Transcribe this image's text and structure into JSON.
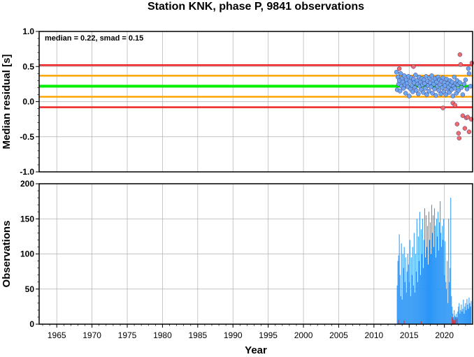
{
  "title": "Station KNK, phase P, 9841 observations",
  "colors": {
    "median_line": "#00ee00",
    "smad_line": "#ffa500",
    "two_smad_line": "#ee2222",
    "normal_point": "#6ea6f0",
    "outlier_point": "#f26b6b",
    "bar_normal": "#2a95f5",
    "bar_outlier": "#e02424",
    "grid": "#b0b0b0"
  },
  "chart_data": [
    {
      "type": "scatter",
      "ylabel": "Median residual [s]",
      "ylim": [
        -1.0,
        1.0
      ],
      "xlim": [
        1962.5,
        2024.0
      ],
      "yticks": [
        "-1.0",
        "-0.5",
        "0.0",
        "0.5",
        "1.0"
      ],
      "grid": true,
      "annotation": "median = 0.22, smad = 0.15",
      "median": 0.22,
      "smad": 0.15,
      "reference_lines": [
        {
          "value": 0.52,
          "color": "#ee2222"
        },
        {
          "value": 0.37,
          "color": "#ffa500"
        },
        {
          "value": 0.22,
          "color": "#00ee00"
        },
        {
          "value": 0.07,
          "color": "#ffa500"
        },
        {
          "value": -0.08,
          "color": "#ee2222"
        }
      ],
      "series": [
        {
          "category": "within",
          "points": [
            [
              2013.2,
              0.42
            ],
            [
              2013.3,
              0.17
            ],
            [
              2013.4,
              0.35
            ],
            [
              2013.5,
              0.25
            ],
            [
              2013.6,
              0.3
            ],
            [
              2013.7,
              0.15
            ],
            [
              2013.8,
              0.4
            ],
            [
              2013.9,
              0.22
            ],
            [
              2014.0,
              0.33
            ],
            [
              2014.1,
              0.28
            ],
            [
              2014.2,
              0.19
            ],
            [
              2014.3,
              0.37
            ],
            [
              2014.4,
              0.24
            ],
            [
              2014.5,
              0.12
            ],
            [
              2014.6,
              0.31
            ],
            [
              2014.7,
              0.26
            ],
            [
              2014.8,
              0.21
            ],
            [
              2014.9,
              0.36
            ],
            [
              2015.0,
              0.08
            ],
            [
              2015.1,
              0.29
            ],
            [
              2015.2,
              0.18
            ],
            [
              2015.3,
              0.34
            ],
            [
              2015.4,
              0.23
            ],
            [
              2015.5,
              0.14
            ],
            [
              2015.6,
              0.32
            ],
            [
              2015.7,
              0.27
            ],
            [
              2015.8,
              0.2
            ],
            [
              2015.9,
              0.38
            ],
            [
              2016.0,
              0.16
            ],
            [
              2016.1,
              0.3
            ],
            [
              2016.2,
              0.25
            ],
            [
              2016.3,
              0.11
            ],
            [
              2016.4,
              0.35
            ],
            [
              2016.5,
              0.22
            ],
            [
              2016.6,
              0.28
            ],
            [
              2016.7,
              0.17
            ],
            [
              2016.8,
              0.33
            ],
            [
              2016.9,
              0.24
            ],
            [
              2017.0,
              0.13
            ],
            [
              2017.1,
              0.31
            ],
            [
              2017.2,
              0.26
            ],
            [
              2017.3,
              0.19
            ],
            [
              2017.4,
              0.36
            ],
            [
              2017.5,
              0.1
            ],
            [
              2017.6,
              0.29
            ],
            [
              2017.7,
              0.23
            ],
            [
              2017.8,
              0.15
            ],
            [
              2017.9,
              0.34
            ],
            [
              2018.0,
              0.27
            ],
            [
              2018.1,
              0.21
            ],
            [
              2018.2,
              0.37
            ],
            [
              2018.3,
              0.12
            ],
            [
              2018.4,
              0.3
            ],
            [
              2018.5,
              0.25
            ],
            [
              2018.6,
              0.18
            ],
            [
              2018.7,
              0.33
            ],
            [
              2018.8,
              0.09
            ],
            [
              2018.9,
              0.28
            ],
            [
              2019.0,
              0.22
            ],
            [
              2019.1,
              0.35
            ],
            [
              2019.2,
              0.16
            ],
            [
              2019.3,
              0.31
            ],
            [
              2019.4,
              0.24
            ],
            [
              2019.5,
              0.11
            ],
            [
              2019.6,
              0.29
            ],
            [
              2019.7,
              0.2
            ],
            [
              2019.8,
              0.34
            ],
            [
              2019.9,
              0.14
            ],
            [
              2020.0,
              0.27
            ],
            [
              2020.1,
              0.23
            ],
            [
              2020.2,
              0.1
            ],
            [
              2020.3,
              0.32
            ],
            [
              2020.4,
              0.18
            ],
            [
              2020.5,
              0.26
            ],
            [
              2020.6,
              0.21
            ],
            [
              2020.7,
              0.13
            ],
            [
              2020.8,
              0.3
            ],
            [
              2020.9,
              0.24
            ],
            [
              2021.0,
              0.17
            ],
            [
              2021.1,
              0.28
            ],
            [
              2021.2,
              0.08
            ],
            [
              2021.3,
              0.22
            ],
            [
              2021.4,
              0.35
            ],
            [
              2021.5,
              0.19
            ],
            [
              2021.6,
              0.26
            ],
            [
              2021.7,
              0.12
            ],
            [
              2021.8,
              0.3
            ],
            [
              2021.9,
              0.24
            ],
            [
              2022.0,
              0.16
            ],
            [
              2022.2,
              0.27
            ],
            [
              2022.4,
              0.2
            ],
            [
              2022.6,
              0.1
            ],
            [
              2022.8,
              0.25
            ],
            [
              2023.0,
              0.31
            ],
            [
              2023.2,
              0.18
            ],
            [
              2023.4,
              0.47
            ],
            [
              2023.5,
              0.4
            ],
            [
              2023.7,
              0.22
            ]
          ]
        },
        {
          "category": "outlier",
          "points": [
            [
              2013.6,
              0.47
            ],
            [
              2015.6,
              0.5
            ],
            [
              2019.8,
              -0.09
            ],
            [
              2021.2,
              -0.02
            ],
            [
              2021.5,
              -0.05
            ],
            [
              2021.8,
              -0.32
            ],
            [
              2022.0,
              -0.45
            ],
            [
              2022.1,
              -0.52
            ],
            [
              2022.2,
              0.67
            ],
            [
              2022.3,
              0.53
            ],
            [
              2022.6,
              -0.2
            ],
            [
              2022.9,
              -0.38
            ],
            [
              2023.1,
              -0.23
            ],
            [
              2023.3,
              -0.22
            ],
            [
              2023.5,
              -0.43
            ],
            [
              2023.8,
              -0.25
            ],
            [
              2023.9,
              0.55
            ]
          ]
        }
      ]
    },
    {
      "type": "bar",
      "ylabel": "Observations",
      "xlabel": "Year",
      "ylim": [
        0,
        200
      ],
      "xlim": [
        1962.5,
        2024.0
      ],
      "yticks": [
        "0",
        "50",
        "100",
        "150",
        "200"
      ],
      "xticks": [
        "1965",
        "1970",
        "1975",
        "1980",
        "1985",
        "1990",
        "1995",
        "2000",
        "2005",
        "2010",
        "2015",
        "2020"
      ],
      "grid": true,
      "bar_width_years": 0.1,
      "bars": [
        [
          2013.3,
          55,
          0
        ],
        [
          2013.4,
          90,
          0
        ],
        [
          2013.5,
          98,
          6
        ],
        [
          2013.6,
          128,
          0
        ],
        [
          2013.7,
          70,
          0
        ],
        [
          2013.8,
          40,
          0
        ],
        [
          2013.9,
          115,
          0
        ],
        [
          2014.0,
          35,
          0
        ],
        [
          2014.1,
          100,
          0
        ],
        [
          2014.2,
          80,
          0
        ],
        [
          2014.3,
          110,
          5
        ],
        [
          2014.4,
          60,
          0
        ],
        [
          2014.5,
          95,
          0
        ],
        [
          2014.6,
          45,
          0
        ],
        [
          2014.7,
          75,
          0
        ],
        [
          2014.8,
          100,
          0
        ],
        [
          2014.9,
          85,
          0
        ],
        [
          2015.0,
          60,
          0
        ],
        [
          2015.1,
          120,
          0
        ],
        [
          2015.2,
          40,
          0
        ],
        [
          2015.3,
          95,
          0
        ],
        [
          2015.4,
          70,
          0
        ],
        [
          2015.5,
          110,
          0
        ],
        [
          2015.6,
          55,
          0
        ],
        [
          2015.7,
          130,
          0
        ],
        [
          2015.8,
          45,
          0
        ],
        [
          2015.9,
          100,
          0
        ],
        [
          2016.0,
          75,
          0
        ],
        [
          2016.1,
          150,
          0
        ],
        [
          2016.2,
          60,
          0
        ],
        [
          2016.3,
          125,
          0
        ],
        [
          2016.4,
          90,
          0
        ],
        [
          2016.5,
          160,
          0
        ],
        [
          2016.6,
          70,
          0
        ],
        [
          2016.7,
          135,
          4
        ],
        [
          2016.8,
          100,
          0
        ],
        [
          2016.9,
          150,
          0
        ],
        [
          2017.0,
          80,
          0
        ],
        [
          2017.1,
          120,
          0
        ],
        [
          2017.2,
          165,
          0
        ],
        [
          2017.3,
          95,
          0
        ],
        [
          2017.4,
          155,
          0
        ],
        [
          2017.5,
          110,
          0
        ],
        [
          2017.6,
          140,
          0
        ],
        [
          2017.7,
          85,
          0
        ],
        [
          2017.8,
          160,
          0
        ],
        [
          2017.9,
          120,
          0
        ],
        [
          2018.0,
          145,
          0
        ],
        [
          2018.1,
          100,
          0
        ],
        [
          2018.2,
          170,
          0
        ],
        [
          2018.3,
          130,
          0
        ],
        [
          2018.4,
          155,
          0
        ],
        [
          2018.5,
          110,
          0
        ],
        [
          2018.6,
          165,
          0
        ],
        [
          2018.7,
          140,
          0
        ],
        [
          2018.8,
          95,
          0
        ],
        [
          2018.9,
          150,
          0
        ],
        [
          2019.0,
          125,
          0
        ],
        [
          2019.1,
          160,
          0
        ],
        [
          2019.2,
          105,
          0
        ],
        [
          2019.3,
          145,
          0
        ],
        [
          2019.4,
          175,
          0
        ],
        [
          2019.5,
          130,
          0
        ],
        [
          2019.6,
          110,
          0
        ],
        [
          2019.7,
          140,
          0
        ],
        [
          2019.8,
          120,
          0
        ],
        [
          2019.9,
          150,
          0
        ],
        [
          2020.0,
          70,
          0
        ],
        [
          2020.1,
          118,
          0
        ],
        [
          2020.2,
          60,
          0
        ],
        [
          2020.3,
          50,
          0
        ],
        [
          2020.4,
          90,
          0
        ],
        [
          2020.5,
          30,
          0
        ],
        [
          2020.6,
          150,
          0
        ],
        [
          2020.7,
          60,
          0
        ],
        [
          2020.8,
          80,
          0
        ],
        [
          2020.9,
          180,
          0
        ],
        [
          2021.0,
          40,
          0
        ],
        [
          2021.1,
          25,
          10
        ],
        [
          2021.2,
          15,
          8
        ],
        [
          2021.3,
          10,
          6
        ],
        [
          2021.4,
          20,
          4
        ],
        [
          2021.5,
          12,
          6
        ],
        [
          2021.6,
          8,
          10
        ],
        [
          2021.7,
          15,
          0
        ],
        [
          2021.8,
          10,
          8
        ],
        [
          2021.9,
          18,
          0
        ],
        [
          2022.0,
          25,
          0
        ],
        [
          2022.1,
          30,
          0
        ],
        [
          2022.2,
          15,
          0
        ],
        [
          2022.3,
          20,
          0
        ],
        [
          2022.4,
          28,
          0
        ],
        [
          2022.5,
          18,
          0
        ],
        [
          2022.6,
          22,
          0
        ],
        [
          2022.7,
          35,
          0
        ],
        [
          2022.8,
          15,
          0
        ],
        [
          2022.9,
          25,
          0
        ],
        [
          2023.0,
          30,
          0
        ],
        [
          2023.1,
          20,
          0
        ],
        [
          2023.2,
          36,
          0
        ],
        [
          2023.3,
          28,
          0
        ],
        [
          2023.4,
          22,
          0
        ],
        [
          2023.5,
          38,
          0
        ],
        [
          2023.6,
          30,
          0
        ],
        [
          2023.7,
          25,
          0
        ],
        [
          2023.8,
          33,
          0
        ]
      ]
    }
  ]
}
